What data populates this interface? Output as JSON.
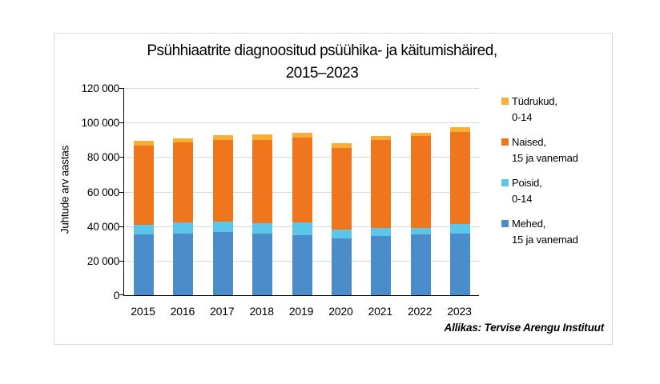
{
  "chart": {
    "title_line1": "Psühhiaatrite diagnoositud psüühika- ja käitumishäired,",
    "title_line2": "2015–2023",
    "ylabel": "Juhtude arv aastas",
    "source": "Allikas: Tervise Arengu Instituut"
  },
  "colors": {
    "mehed": "#4B8DCB",
    "poisid": "#5BC6E8",
    "naised": "#F0761D",
    "tudrukud": "#FBAE33",
    "gridline": "#D9D9D9",
    "axis": "#000000",
    "card_border": "#D9D9D9"
  },
  "legend": {
    "items": [
      {
        "key": "tudrukud",
        "line1": "Tüdrukud,",
        "line2": "0-14",
        "color": "#FBAE33"
      },
      {
        "key": "naised",
        "line1": "Naised,",
        "line2": "15 ja vanemad",
        "color": "#F0761D"
      },
      {
        "key": "poisid",
        "line1": "Poisid,",
        "line2": "0-14",
        "color": "#5BC6E8"
      },
      {
        "key": "mehed",
        "line1": "Mehed,",
        "line2": "15 ja vanemad",
        "color": "#4B8DCB"
      }
    ]
  },
  "chart_data": {
    "type": "bar",
    "stacked": true,
    "title": "Psühhiaatrite diagnoositud psüühika- ja käitumishäired, 2015–2023",
    "xlabel": "",
    "ylabel": "Juhtude arv aastas",
    "ylim": [
      0,
      120000
    ],
    "ytick_values": [
      0,
      20000,
      40000,
      60000,
      80000,
      100000,
      120000
    ],
    "ytick_labels": [
      "0",
      "20 000",
      "40 000",
      "60 000",
      "80 000",
      "100 000",
      "120 000"
    ],
    "grid": true,
    "legend_position": "right",
    "source": "Allikas: Tervise Arengu Instituut",
    "categories": [
      "2015",
      "2016",
      "2017",
      "2018",
      "2019",
      "2020",
      "2021",
      "2022",
      "2023"
    ],
    "series": [
      {
        "key": "mehed",
        "name": "Mehed, 15 ja vanemad",
        "color": "#4B8DCB",
        "values": [
          35000,
          35800,
          36500,
          35700,
          34900,
          32900,
          34400,
          35000,
          35900
        ]
      },
      {
        "key": "poisid",
        "name": "Poisid, 0-14",
        "color": "#5BC6E8",
        "values": [
          6000,
          6300,
          6200,
          6000,
          7100,
          4900,
          4700,
          3900,
          5500
        ]
      },
      {
        "key": "naised",
        "name": "Naised, 15 ja vanemad",
        "color": "#F0761D",
        "values": [
          45800,
          46500,
          47300,
          48400,
          49500,
          47500,
          50800,
          53300,
          53300
        ]
      },
      {
        "key": "tudrukud",
        "name": "Tüdrukud, 0-14",
        "color": "#FBAE33",
        "values": [
          2600,
          2300,
          2900,
          3100,
          2700,
          2600,
          2300,
          2000,
          2800
        ]
      }
    ]
  }
}
